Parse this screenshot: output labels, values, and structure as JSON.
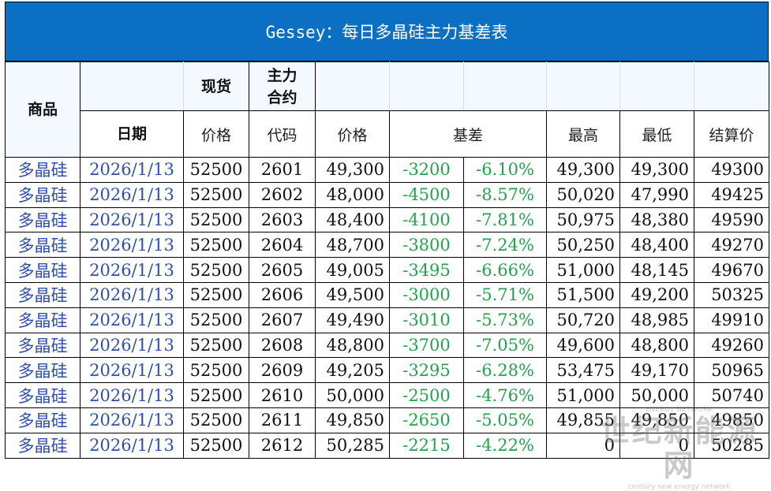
{
  "title": "Gessey：每日多晶硅主力基差表",
  "headers": {
    "product": "商品",
    "spot": "现货",
    "main_contract": "主力合约",
    "date": "日期",
    "spot_price": "价格",
    "code": "代码",
    "price": "价格",
    "basis": "基差",
    "high": "最高",
    "low": "最低",
    "settle": "结算价"
  },
  "rows": [
    {
      "product": "多晶硅",
      "date": "2026/1/13",
      "spot": "52500",
      "code": "2601",
      "price": "49,300",
      "basis": "-3200",
      "basis_pct": "-6.10%",
      "high": "49,300",
      "low": "49,300",
      "settle": "49300"
    },
    {
      "product": "多晶硅",
      "date": "2026/1/13",
      "spot": "52500",
      "code": "2602",
      "price": "48,000",
      "basis": "-4500",
      "basis_pct": "-8.57%",
      "high": "50,020",
      "low": "47,990",
      "settle": "49425"
    },
    {
      "product": "多晶硅",
      "date": "2026/1/13",
      "spot": "52500",
      "code": "2603",
      "price": "48,400",
      "basis": "-4100",
      "basis_pct": "-7.81%",
      "high": "50,975",
      "low": "48,380",
      "settle": "49590"
    },
    {
      "product": "多晶硅",
      "date": "2026/1/13",
      "spot": "52500",
      "code": "2604",
      "price": "48,700",
      "basis": "-3800",
      "basis_pct": "-7.24%",
      "high": "50,250",
      "low": "48,400",
      "settle": "49270"
    },
    {
      "product": "多晶硅",
      "date": "2026/1/13",
      "spot": "52500",
      "code": "2605",
      "price": "49,005",
      "basis": "-3495",
      "basis_pct": "-6.66%",
      "high": "51,000",
      "low": "48,145",
      "settle": "49670"
    },
    {
      "product": "多晶硅",
      "date": "2026/1/13",
      "spot": "52500",
      "code": "2606",
      "price": "49,500",
      "basis": "-3000",
      "basis_pct": "-5.71%",
      "high": "51,500",
      "low": "49,200",
      "settle": "50325"
    },
    {
      "product": "多晶硅",
      "date": "2026/1/13",
      "spot": "52500",
      "code": "2607",
      "price": "49,490",
      "basis": "-3010",
      "basis_pct": "-5.73%",
      "high": "50,720",
      "low": "48,985",
      "settle": "49910"
    },
    {
      "product": "多晶硅",
      "date": "2026/1/13",
      "spot": "52500",
      "code": "2608",
      "price": "48,800",
      "basis": "-3700",
      "basis_pct": "-7.05%",
      "high": "49,600",
      "low": "48,800",
      "settle": "49260"
    },
    {
      "product": "多晶硅",
      "date": "2026/1/13",
      "spot": "52500",
      "code": "2609",
      "price": "49,205",
      "basis": "-3295",
      "basis_pct": "-6.28%",
      "high": "53,475",
      "low": "49,170",
      "settle": "50965"
    },
    {
      "product": "多晶硅",
      "date": "2026/1/13",
      "spot": "52500",
      "code": "2610",
      "price": "50,000",
      "basis": "-2500",
      "basis_pct": "-4.76%",
      "high": "51,000",
      "low": "50,000",
      "settle": "50740"
    },
    {
      "product": "多晶硅",
      "date": "2026/1/13",
      "spot": "52500",
      "code": "2611",
      "price": "49,850",
      "basis": "-2650",
      "basis_pct": "-5.05%",
      "high": "49,855",
      "low": "49,850",
      "settle": "49850"
    },
    {
      "product": "多晶硅",
      "date": "2026/1/13",
      "spot": "52500",
      "code": "2612",
      "price": "50,285",
      "basis": "-2215",
      "basis_pct": "-4.22%",
      "high": "0",
      "low": "0",
      "settle": "50285"
    }
  ],
  "watermark": {
    "line1": "世纪新能源网",
    "line2": "century new energy network"
  },
  "colors": {
    "title_bg": "#0b6fc4",
    "title_text": "#ffffff",
    "link_blue": "#2f4fb0",
    "basis_green": "#1fa64a",
    "header_bg": "#f4f9ff"
  }
}
